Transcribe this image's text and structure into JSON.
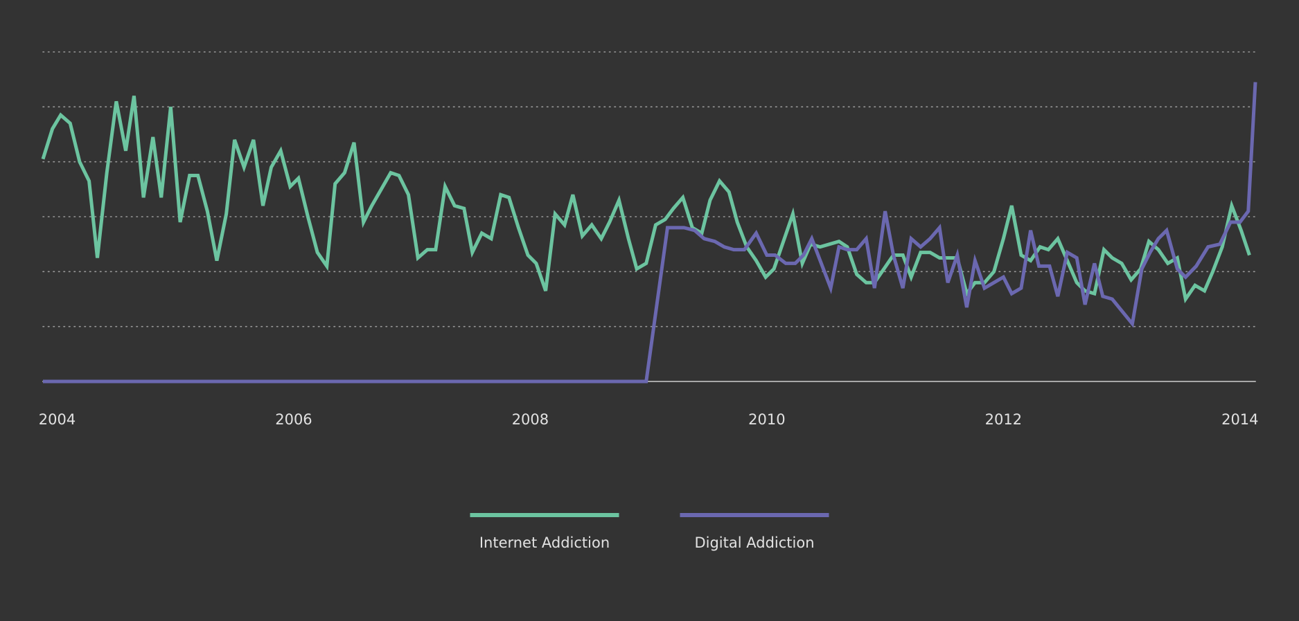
{
  "chart_data": {
    "type": "line",
    "xlim": [
      2003.88,
      2014.13
    ],
    "xticks": [
      2004,
      2006,
      2008,
      2010,
      2012,
      2014
    ],
    "ylim": [
      0,
      120
    ],
    "yticks": [
      0,
      20,
      40,
      60,
      80,
      100,
      120
    ],
    "grid": true,
    "legend": "bottom",
    "series": [
      {
        "name": "Internet Addiction",
        "color": "#6cc4a0",
        "x": [
          2003.88,
          2003.96,
          2004.03,
          2004.11,
          2004.19,
          2004.27,
          2004.34,
          2004.42,
          2004.5,
          2004.58,
          2004.65,
          2004.73,
          2004.81,
          2004.88,
          2004.96,
          2005.04,
          2005.12,
          2005.19,
          2005.27,
          2005.35,
          2005.43,
          2005.5,
          2005.58,
          2005.66,
          2005.74,
          2005.81,
          2005.89,
          2005.97,
          2006.04,
          2006.12,
          2006.2,
          2006.28,
          2006.35,
          2006.43,
          2006.51,
          2006.59,
          2006.66,
          2006.74,
          2006.82,
          2006.89,
          2006.97,
          2007.05,
          2007.13,
          2007.2,
          2007.28,
          2007.36,
          2007.44,
          2007.51,
          2007.59,
          2007.67,
          2007.75,
          2007.82,
          2007.9,
          2007.98,
          2008.05,
          2008.13,
          2008.21,
          2008.29,
          2008.36,
          2008.44,
          2008.52,
          2008.6,
          2008.67,
          2008.75,
          2008.83,
          2008.9,
          2008.98,
          2009.06,
          2009.14,
          2009.21,
          2009.29,
          2009.37,
          2009.45,
          2009.52,
          2009.6,
          2009.68,
          2009.75,
          2009.83,
          2009.91,
          2009.99,
          2010.06,
          2010.14,
          2010.22,
          2010.3,
          2010.37,
          2010.45,
          2010.53,
          2010.61,
          2010.68,
          2010.76,
          2010.84,
          2010.91,
          2010.99,
          2011.07,
          2011.15,
          2011.22,
          2011.3,
          2011.38,
          2011.46,
          2011.53,
          2011.61,
          2011.69,
          2011.76,
          2011.84,
          2011.92,
          2012.0,
          2012.07,
          2012.15,
          2012.23,
          2012.31,
          2012.38,
          2012.46,
          2012.54,
          2012.62,
          2012.69,
          2012.77,
          2012.85,
          2012.92,
          2013.0,
          2013.08,
          2013.16,
          2013.23,
          2013.31,
          2013.39,
          2013.47,
          2013.54,
          2013.62,
          2013.7,
          2013.77,
          2013.85,
          2013.93,
          2014.01,
          2014.08
        ],
        "values": [
          81,
          92,
          97,
          94,
          80,
          73,
          45,
          76,
          102,
          84,
          104,
          67,
          89,
          67,
          100,
          58,
          75,
          75,
          62,
          44,
          61,
          88,
          78,
          88,
          64,
          78,
          84,
          71,
          74,
          60,
          47,
          42,
          72,
          76,
          87,
          58,
          64,
          70,
          76,
          75,
          68,
          45,
          48,
          48,
          71,
          64,
          63,
          47,
          54,
          52,
          68,
          67,
          56,
          46,
          43,
          33,
          61,
          57,
          68,
          53,
          57,
          52,
          58,
          66,
          52,
          41,
          43,
          57,
          59,
          63,
          67,
          56,
          54,
          66,
          73,
          69,
          58,
          49,
          44,
          38,
          41,
          51,
          61,
          43,
          50,
          49,
          50,
          51,
          49,
          39,
          36,
          36,
          41,
          46,
          46,
          38,
          47,
          47,
          45,
          45,
          45,
          32,
          36,
          36,
          40,
          52,
          64,
          46,
          44,
          49,
          48,
          52,
          44,
          36,
          33,
          32,
          48,
          45,
          43,
          37,
          41,
          51,
          48,
          43,
          45,
          30,
          35,
          33,
          40,
          49,
          64,
          55,
          46
        ]
      },
      {
        "name": "Digital Addiction",
        "color": "#6b68b0",
        "x": [
          2003.88,
          2008.98,
          2009.16,
          2009.3,
          2009.39,
          2009.47,
          2009.56,
          2009.64,
          2009.72,
          2009.81,
          2009.91,
          2010.0,
          2010.07,
          2010.16,
          2010.24,
          2010.31,
          2010.38,
          2010.46,
          2010.54,
          2010.61,
          2010.68,
          2010.76,
          2010.84,
          2010.91,
          2011.0,
          2011.07,
          2011.15,
          2011.22,
          2011.3,
          2011.38,
          2011.46,
          2011.53,
          2011.61,
          2011.69,
          2011.76,
          2011.84,
          2011.92,
          2012.0,
          2012.07,
          2012.15,
          2012.23,
          2012.3,
          2012.39,
          2012.46,
          2012.54,
          2012.62,
          2012.69,
          2012.77,
          2012.84,
          2012.92,
          2013.09,
          2013.17,
          2013.24,
          2013.31,
          2013.38,
          2013.47,
          2013.54,
          2013.63,
          2013.73,
          2013.83,
          2013.92,
          2014.0,
          2014.07,
          2014.13
        ],
        "values": [
          0,
          0,
          56,
          56,
          55,
          52,
          51,
          49,
          48,
          48,
          54,
          46,
          46,
          43,
          43,
          46,
          52,
          43,
          34,
          49,
          48,
          48,
          52,
          34,
          62,
          46,
          34,
          52,
          49,
          52,
          56,
          36,
          46,
          27,
          44,
          34,
          36,
          38,
          32,
          34,
          55,
          42,
          42,
          31,
          47,
          45,
          28,
          43,
          31,
          30,
          21,
          41,
          47,
          52,
          55,
          41,
          38,
          42,
          49,
          50,
          58,
          58,
          62,
          109
        ]
      }
    ]
  }
}
